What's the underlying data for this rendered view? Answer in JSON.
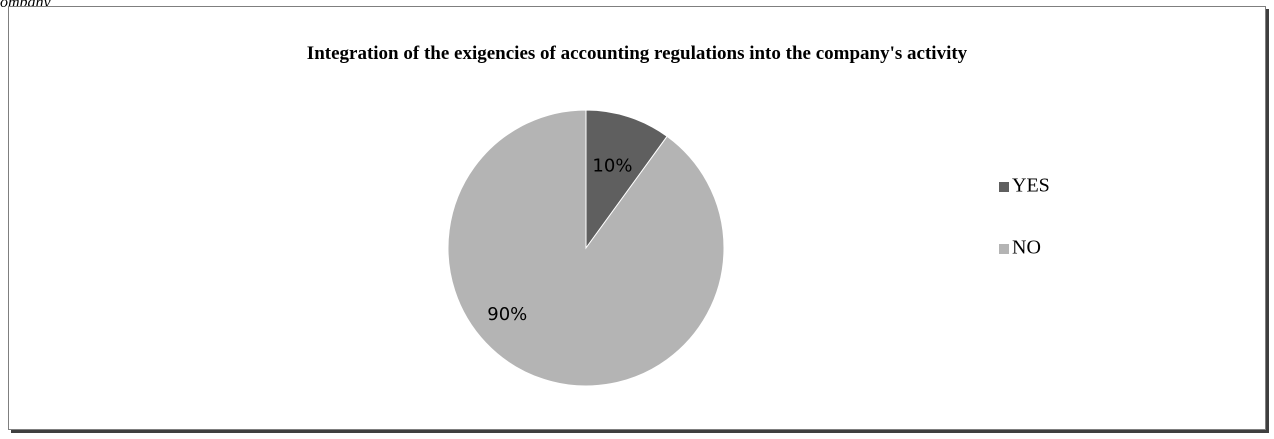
{
  "page": {
    "top_fragment": "ompany"
  },
  "chart_data": {
    "type": "pie",
    "title": "Integration of the exigencies of accounting regulations into the company's activity",
    "categories": [
      "YES",
      "NO"
    ],
    "values": [
      10,
      90
    ],
    "labels": [
      "10%",
      "90%"
    ],
    "colors": [
      "#5f5f5f",
      "#b4b4b4"
    ],
    "legend_position": "right",
    "start_angle": "12 o'clock",
    "direction": "clockwise"
  }
}
